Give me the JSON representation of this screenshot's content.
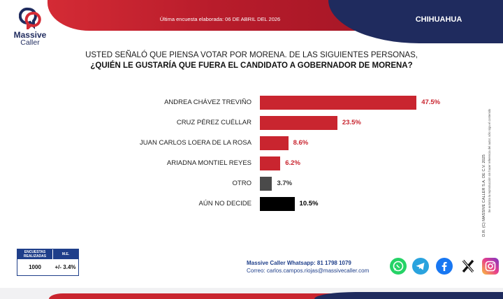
{
  "header": {
    "date_text": "Última encuesta elaborada: 06 DE ABRIL DEL 2026",
    "region": "CHIHUAHUA"
  },
  "logo": {
    "name": "Massive",
    "sub": "Caller"
  },
  "question": {
    "line1": "USTED SEÑALÓ QUE PIENSA VOTAR POR MORENA. DE LAS SIGUIENTES PERSONAS,",
    "line2": "¿QUIÉN LE GUSTARÍA QUE FUERA EL CANDIDATO A GOBERNADOR DE MORENA?"
  },
  "chart_data": {
    "type": "bar",
    "orientation": "horizontal",
    "categories": [
      "ANDREA CHÁVEZ TREVIÑO",
      "CRUZ PÉREZ CUÉLLAR",
      "JUAN CARLOS LOERA DE LA ROSA",
      "ARIADNA MONTIEL REYES",
      "OTRO",
      "AÚN NO DECIDE"
    ],
    "values": [
      47.5,
      23.5,
      8.6,
      6.2,
      3.7,
      10.5
    ],
    "value_labels": [
      "47.5%",
      "23.5%",
      "8.6%",
      "6.2%",
      "3.7%",
      "10.5%"
    ],
    "colors": [
      "#c9252f",
      "#c9252f",
      "#c9252f",
      "#c9252f",
      "#4a4a4a",
      "#000000"
    ],
    "label_colors": [
      "#c9252f",
      "#c9252f",
      "#c9252f",
      "#c9252f",
      "#333333",
      "#000000"
    ],
    "xlim": [
      0,
      50
    ]
  },
  "side_note": {
    "line1": "D.R. (C) MASSIVE CALLER S.A. DE C.V. 2025",
    "line2": "Se autoriza la reproducción sin hacer referencia del autor, sólo siga el contenido"
  },
  "stats": {
    "col1_header": "ENCUESTAS REALIZADAS",
    "col2_header": "M.E.",
    "col1_value": "1000",
    "col2_value": "+/- 3.4%"
  },
  "contact": {
    "whatsapp": "Massive Caller Whatsapp: 81 1798 1079",
    "email": "Correo: carlos.campos.riojas@massivecaller.com"
  },
  "social_icons": [
    "whatsapp-icon",
    "telegram-icon",
    "facebook-icon",
    "x-icon",
    "instagram-icon"
  ]
}
